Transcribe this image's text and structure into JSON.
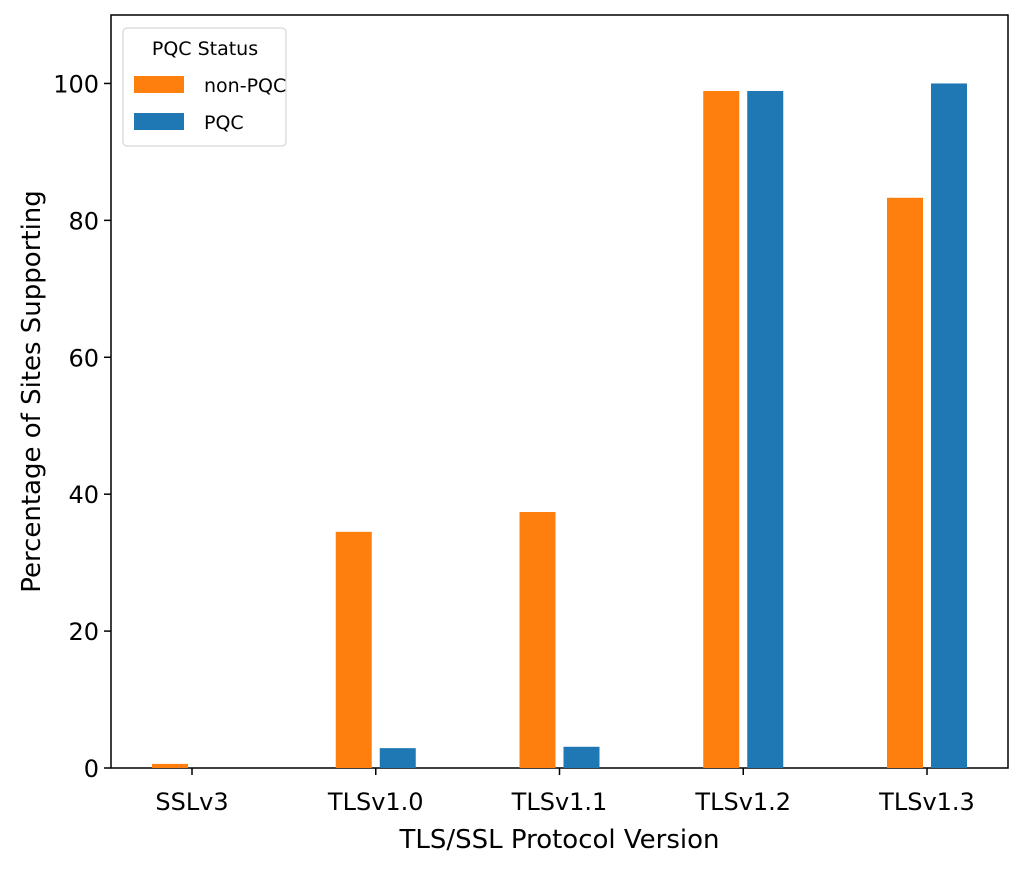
{
  "chart_data": {
    "type": "bar",
    "title": "",
    "xlabel": "TLS/SSL Protocol Version",
    "ylabel": "Percentage of Sites Supporting",
    "categories": [
      "SSLv3",
      "TLSv1.0",
      "TLSv1.1",
      "TLSv1.2",
      "TLSv1.3"
    ],
    "series": [
      {
        "name": "non-PQC",
        "color": "#ff7f0e",
        "values": [
          0.6,
          34.5,
          37.4,
          98.9,
          83.3
        ]
      },
      {
        "name": "PQC",
        "color": "#1f77b4",
        "values": [
          0.0,
          2.9,
          3.1,
          98.9,
          100.0
        ]
      }
    ],
    "ylim": [
      0,
      110
    ],
    "yticks": [
      0,
      20,
      40,
      60,
      80,
      100
    ],
    "grid": false,
    "legend": {
      "title": "PQC Status",
      "placement": "top-left"
    }
  }
}
